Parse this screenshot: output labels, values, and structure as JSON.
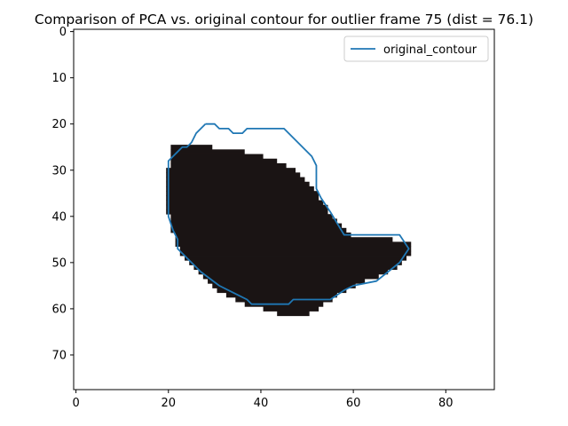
{
  "chart_data": {
    "type": "line",
    "title": "Comparison of PCA vs. original contour for outlier frame 75 (dist = 76.1)",
    "xlabel": "",
    "ylabel": "",
    "xlim": [
      -0.5,
      90.5
    ],
    "ylim": [
      77.5,
      -0.5
    ],
    "x_ticks": [
      0,
      20,
      40,
      60,
      80
    ],
    "y_ticks": [
      0,
      10,
      20,
      30,
      40,
      50,
      60,
      70
    ],
    "grid": false,
    "legend_position": "upper right",
    "series": [
      {
        "name": "original_contour",
        "color": "#1f77b4",
        "points": [
          [
            28,
            20
          ],
          [
            30,
            20
          ],
          [
            31,
            21
          ],
          [
            33,
            21
          ],
          [
            34,
            22
          ],
          [
            36,
            22
          ],
          [
            37,
            21
          ],
          [
            45,
            21
          ],
          [
            51,
            27
          ],
          [
            52,
            29
          ],
          [
            52,
            34
          ],
          [
            53,
            36
          ],
          [
            55,
            39
          ],
          [
            58,
            44
          ],
          [
            70,
            44
          ],
          [
            72,
            47
          ],
          [
            70,
            50
          ],
          [
            65,
            54
          ],
          [
            60,
            55
          ],
          [
            58,
            56
          ],
          [
            55,
            58
          ],
          [
            47,
            58
          ],
          [
            46,
            59
          ],
          [
            38,
            59
          ],
          [
            37,
            58
          ],
          [
            35,
            57
          ],
          [
            31,
            55
          ],
          [
            27,
            52
          ],
          [
            23,
            48
          ],
          [
            22,
            47
          ],
          [
            22,
            45
          ],
          [
            21,
            43
          ],
          [
            20,
            40
          ],
          [
            20,
            28
          ],
          [
            22,
            26
          ],
          [
            23,
            25
          ],
          [
            24,
            25
          ],
          [
            25,
            24
          ],
          [
            26,
            22
          ],
          [
            28,
            20
          ]
        ]
      }
    ],
    "background_image": {
      "description": "dark pixelated PCA reconstruction mask",
      "color": "#1a1414",
      "rows": [
        [
          25,
          21,
          29
        ],
        [
          26,
          21,
          36
        ],
        [
          27,
          21,
          40
        ],
        [
          28,
          21,
          43
        ],
        [
          29,
          21,
          45
        ],
        [
          30,
          20,
          47
        ],
        [
          31,
          20,
          48
        ],
        [
          32,
          20,
          49
        ],
        [
          33,
          20,
          50
        ],
        [
          34,
          20,
          51
        ],
        [
          35,
          20,
          52
        ],
        [
          36,
          20,
          52
        ],
        [
          37,
          20,
          53
        ],
        [
          38,
          20,
          54
        ],
        [
          39,
          20,
          54
        ],
        [
          40,
          21,
          55
        ],
        [
          41,
          21,
          56
        ],
        [
          42,
          21,
          57
        ],
        [
          43,
          21,
          58
        ],
        [
          44,
          22,
          59
        ],
        [
          45,
          22,
          68
        ],
        [
          46,
          22,
          72
        ],
        [
          47,
          23,
          72
        ],
        [
          48,
          23,
          72
        ],
        [
          49,
          24,
          71
        ],
        [
          50,
          25,
          70
        ],
        [
          51,
          26,
          69
        ],
        [
          52,
          27,
          67
        ],
        [
          53,
          28,
          65
        ],
        [
          54,
          29,
          62
        ],
        [
          55,
          30,
          60
        ],
        [
          56,
          31,
          58
        ],
        [
          57,
          33,
          56
        ],
        [
          58,
          35,
          55
        ],
        [
          59,
          37,
          53
        ],
        [
          60,
          41,
          52
        ],
        [
          61,
          44,
          50
        ]
      ]
    }
  }
}
